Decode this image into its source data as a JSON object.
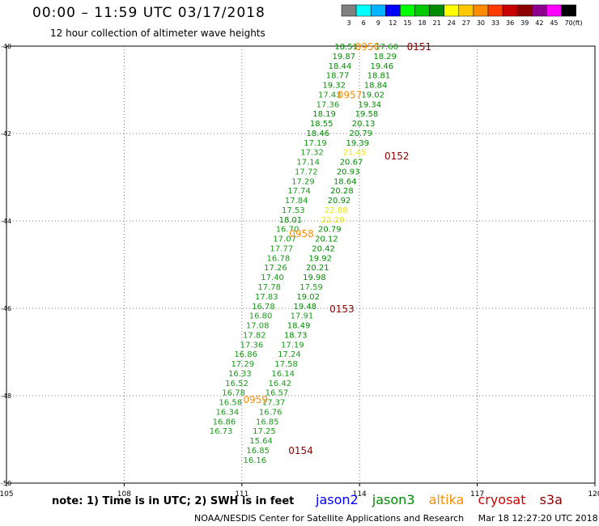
{
  "header": {
    "title": "00:00 – 11:59 UTC 03/17/2018",
    "subtitle": "12 hour collection of altimeter wave heights"
  },
  "colorbar": {
    "labels": [
      "3",
      "6",
      "9",
      "12",
      "15",
      "18",
      "21",
      "24",
      "27",
      "30",
      "33",
      "36",
      "39",
      "42",
      "45",
      "70"
    ],
    "unit": "(ft)",
    "colors": [
      "#808080",
      "#00ffff",
      "#00b4ff",
      "#0000ff",
      "#00ff00",
      "#00c800",
      "#008c00",
      "#ffff00",
      "#ffc800",
      "#ff8c00",
      "#ff3c00",
      "#c80000",
      "#8c0000",
      "#8c008c",
      "#ff00ff",
      "#000000"
    ]
  },
  "note": "note: 1) Time is in UTC; 2) SWH is in feet",
  "satellites": [
    {
      "name": "jason2",
      "color": "#0000ff"
    },
    {
      "name": "jason3",
      "color": "#008c00"
    },
    {
      "name": "altika",
      "color": "#ff8c00"
    },
    {
      "name": "cryosat",
      "color": "#c80000"
    },
    {
      "name": "s3a",
      "color": "#8c0000"
    }
  ],
  "footer": {
    "credit": "NOAA/NESDIS Center for Satellite Applications and Research",
    "timestamp": "Mar 18 12:27:20 UTC 2018"
  },
  "chart_data": {
    "type": "scatter",
    "x_axis": {
      "ticks": [
        105,
        108,
        111,
        114,
        117,
        120
      ],
      "range": [
        105,
        120
      ]
    },
    "y_axis": {
      "ticks": [
        -40,
        -42,
        -44,
        -46,
        -48,
        -50
      ],
      "range": [
        -50,
        -40
      ]
    },
    "grid": true,
    "tracks": [
      {
        "satellite": "jason3",
        "points": [
          {
            "x": 113.66,
            "y": -40.0,
            "v": 18.51
          },
          {
            "x": 113.6,
            "y": -40.22,
            "v": 19.87
          },
          {
            "x": 113.5,
            "y": -40.44,
            "v": 18.44
          },
          {
            "x": 113.44,
            "y": -40.66,
            "v": 18.77
          },
          {
            "x": 113.35,
            "y": -40.88,
            "v": 19.32
          },
          {
            "x": 113.24,
            "y": -41.1,
            "v": 17.43
          },
          {
            "x": 113.19,
            "y": -41.32,
            "v": 17.36
          },
          {
            "x": 113.1,
            "y": -41.54,
            "v": 18.19
          },
          {
            "x": 113.03,
            "y": -41.76,
            "v": 18.55
          },
          {
            "x": 112.94,
            "y": -41.98,
            "v": 18.46
          },
          {
            "x": 112.87,
            "y": -42.2,
            "v": 17.19
          },
          {
            "x": 112.79,
            "y": -42.42,
            "v": 17.32
          },
          {
            "x": 112.69,
            "y": -42.64,
            "v": 17.14
          },
          {
            "x": 112.64,
            "y": -42.86,
            "v": 17.72
          },
          {
            "x": 112.56,
            "y": -43.08,
            "v": 17.29
          },
          {
            "x": 112.46,
            "y": -43.3,
            "v": 17.74
          },
          {
            "x": 112.39,
            "y": -43.52,
            "v": 17.84
          },
          {
            "x": 112.31,
            "y": -43.74,
            "v": 17.53
          },
          {
            "x": 112.24,
            "y": -43.96,
            "v": 18.01
          },
          {
            "x": 112.16,
            "y": -44.18,
            "v": 16.7
          },
          {
            "x": 112.09,
            "y": -44.4,
            "v": 17.07
          },
          {
            "x": 112.01,
            "y": -44.62,
            "v": 17.77
          },
          {
            "x": 111.93,
            "y": -44.84,
            "v": 16.78
          },
          {
            "x": 111.86,
            "y": -45.06,
            "v": 17.26
          },
          {
            "x": 111.78,
            "y": -45.28,
            "v": 17.4
          },
          {
            "x": 111.7,
            "y": -45.5,
            "v": 17.78
          },
          {
            "x": 111.63,
            "y": -45.72,
            "v": 17.83
          },
          {
            "x": 111.55,
            "y": -45.94,
            "v": 16.78
          },
          {
            "x": 111.48,
            "y": -46.16,
            "v": 16.8
          },
          {
            "x": 111.4,
            "y": -46.38,
            "v": 17.08
          },
          {
            "x": 111.32,
            "y": -46.6,
            "v": 17.82
          },
          {
            "x": 111.25,
            "y": -46.82,
            "v": 17.36
          },
          {
            "x": 111.1,
            "y": -47.04,
            "v": 16.86
          },
          {
            "x": 111.02,
            "y": -47.26,
            "v": 17.29
          },
          {
            "x": 110.95,
            "y": -47.48,
            "v": 16.33
          },
          {
            "x": 110.87,
            "y": -47.7,
            "v": 16.52
          },
          {
            "x": 110.79,
            "y": -47.92,
            "v": 16.78
          },
          {
            "x": 110.71,
            "y": -48.14,
            "v": 16.58
          },
          {
            "x": 110.63,
            "y": -48.36,
            "v": 16.34
          },
          {
            "x": 110.55,
            "y": -48.58,
            "v": 16.86
          },
          {
            "x": 110.47,
            "y": -48.8,
            "v": 16.73
          }
        ]
      },
      {
        "satellite": "jason3",
        "points": [
          {
            "x": 114.69,
            "y": -40.0,
            "v": 17.6
          },
          {
            "x": 114.65,
            "y": -40.22,
            "v": 18.29
          },
          {
            "x": 114.57,
            "y": -40.44,
            "v": 19.46
          },
          {
            "x": 114.49,
            "y": -40.66,
            "v": 18.81
          },
          {
            "x": 114.41,
            "y": -40.88,
            "v": 18.84
          },
          {
            "x": 114.34,
            "y": -41.1,
            "v": 19.02
          },
          {
            "x": 114.26,
            "y": -41.32,
            "v": 19.34
          },
          {
            "x": 114.18,
            "y": -41.54,
            "v": 19.58
          },
          {
            "x": 114.1,
            "y": -41.76,
            "v": 20.13
          },
          {
            "x": 114.03,
            "y": -41.98,
            "v": 20.79
          },
          {
            "x": 113.95,
            "y": -42.2,
            "v": 19.39
          },
          {
            "x": 113.87,
            "y": -42.42,
            "v": 21.45
          },
          {
            "x": 113.79,
            "y": -42.64,
            "v": 20.67
          },
          {
            "x": 113.71,
            "y": -42.86,
            "v": 20.93
          },
          {
            "x": 113.63,
            "y": -43.08,
            "v": 18.64
          },
          {
            "x": 113.55,
            "y": -43.3,
            "v": 20.28
          },
          {
            "x": 113.48,
            "y": -43.52,
            "v": 20.92
          },
          {
            "x": 113.4,
            "y": -43.74,
            "v": 22.88
          },
          {
            "x": 113.32,
            "y": -43.96,
            "v": 22.29
          },
          {
            "x": 113.24,
            "y": -44.18,
            "v": 20.79
          },
          {
            "x": 113.16,
            "y": -44.4,
            "v": 20.12
          },
          {
            "x": 113.08,
            "y": -44.62,
            "v": 20.42
          },
          {
            "x": 113.0,
            "y": -44.84,
            "v": 19.92
          },
          {
            "x": 112.93,
            "y": -45.06,
            "v": 20.21
          },
          {
            "x": 112.85,
            "y": -45.28,
            "v": 19.98
          },
          {
            "x": 112.77,
            "y": -45.5,
            "v": 17.59
          },
          {
            "x": 112.69,
            "y": -45.72,
            "v": 19.02
          },
          {
            "x": 112.61,
            "y": -45.94,
            "v": 19.48
          },
          {
            "x": 112.53,
            "y": -46.16,
            "v": 17.91
          },
          {
            "x": 112.45,
            "y": -46.38,
            "v": 18.49
          },
          {
            "x": 112.37,
            "y": -46.6,
            "v": 18.73
          },
          {
            "x": 112.29,
            "y": -46.82,
            "v": 17.19
          },
          {
            "x": 112.21,
            "y": -47.04,
            "v": 17.24
          },
          {
            "x": 112.13,
            "y": -47.26,
            "v": 17.58
          },
          {
            "x": 112.05,
            "y": -47.48,
            "v": 16.14
          },
          {
            "x": 111.97,
            "y": -47.7,
            "v": 16.42
          },
          {
            "x": 111.89,
            "y": -47.92,
            "v": 16.57
          },
          {
            "x": 111.81,
            "y": -48.14,
            "v": 17.37
          },
          {
            "x": 111.73,
            "y": -48.36,
            "v": 16.76
          },
          {
            "x": 111.65,
            "y": -48.58,
            "v": 16.85
          },
          {
            "x": 111.57,
            "y": -48.8,
            "v": 17.25
          },
          {
            "x": 111.49,
            "y": -49.02,
            "v": 15.64
          },
          {
            "x": 111.41,
            "y": -49.24,
            "v": 16.85
          },
          {
            "x": 111.33,
            "y": -49.46,
            "v": 16.16
          }
        ]
      }
    ],
    "time_labels": [
      {
        "text": "0956",
        "x": 114.2,
        "y": -40.0,
        "color": "#ff8c00"
      },
      {
        "text": "0151",
        "x": 115.52,
        "y": -40.0,
        "color": "#8c0000"
      },
      {
        "text": "0957",
        "x": 113.75,
        "y": -41.1,
        "color": "#ff8c00"
      },
      {
        "text": "0152",
        "x": 114.95,
        "y": -42.5,
        "color": "#8c0000"
      },
      {
        "text": "0958",
        "x": 112.52,
        "y": -44.28,
        "color": "#ff8c00"
      },
      {
        "text": "0153",
        "x": 113.55,
        "y": -46.0,
        "color": "#8c0000"
      },
      {
        "text": "0959",
        "x": 111.35,
        "y": -48.07,
        "color": "#ff8c00"
      },
      {
        "text": "0154",
        "x": 112.5,
        "y": -49.24,
        "color": "#8c0000"
      }
    ]
  }
}
